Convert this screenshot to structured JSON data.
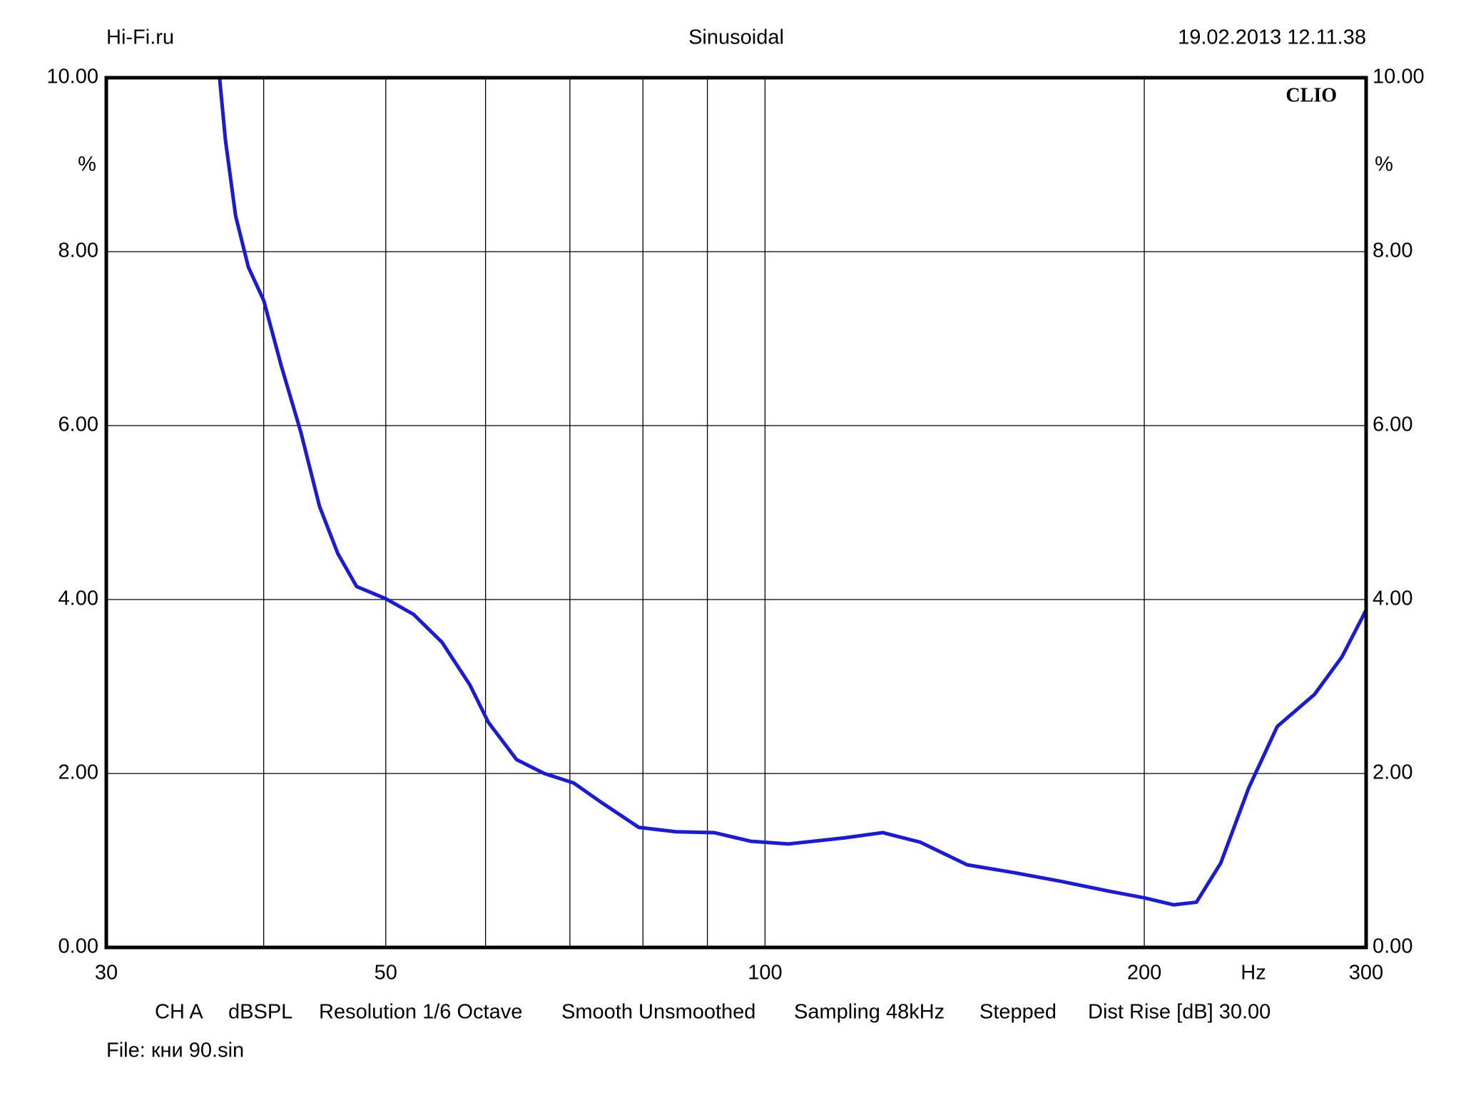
{
  "chart_data": {
    "type": "line",
    "header": {
      "left": "Hi-Fi.ru",
      "center": "Sinusoidal",
      "right": "19.02.2013 12.11.38"
    },
    "brand": "CLIO",
    "y_unit": "%",
    "x_unit": "Hz",
    "footer": [
      "CH A",
      "dBSPL",
      "Resolution 1/6 Octave",
      "Smooth Unsmoothed",
      "Sampling 48kHz",
      "Stepped",
      "Dist Rise [dB] 30.00"
    ],
    "file": "File: кни 90.sin",
    "x_log": true,
    "xlim": [
      30,
      300
    ],
    "xticks": [
      30,
      50,
      100,
      200,
      300
    ],
    "xgrid_minor": [
      40,
      60,
      70,
      80,
      90
    ],
    "ylim": [
      0,
      10
    ],
    "yticks": [
      {
        "value": 0,
        "label": "0.00"
      },
      {
        "value": 2,
        "label": "2.00"
      },
      {
        "value": 4,
        "label": "4.00"
      },
      {
        "value": 6,
        "label": "6.00"
      },
      {
        "value": 8,
        "label": "8.00"
      },
      {
        "value": 10,
        "label": "10.00"
      }
    ],
    "grid": true,
    "x": [
      36.9,
      37.3,
      38.0,
      38.9,
      40.0,
      41.3,
      42.8,
      44.3,
      45.8,
      47.4,
      50.0,
      52.6,
      55.4,
      58.3,
      60.3,
      63.5,
      66.8,
      70.5,
      74.1,
      79.4,
      85.0,
      91.1,
      97.5,
      104.4,
      115.7,
      124.0,
      132.8,
      144.7,
      157.6,
      171.8,
      187.0,
      200.0,
      211.0,
      220.0,
      230.0,
      242.0,
      255.0,
      273.0,
      287.0,
      300.0
    ],
    "series": [
      {
        "name": "CH A",
        "color": "#1a1adc",
        "values": [
          10.0,
          9.28,
          8.41,
          7.82,
          7.44,
          6.69,
          5.93,
          5.07,
          4.53,
          4.15,
          4.01,
          3.83,
          3.51,
          3.02,
          2.59,
          2.16,
          2.0,
          1.89,
          1.67,
          1.38,
          1.33,
          1.32,
          1.22,
          1.19,
          1.26,
          1.32,
          1.21,
          0.95,
          0.86,
          0.76,
          0.65,
          0.57,
          0.49,
          0.52,
          0.97,
          1.83,
          2.54,
          2.91,
          3.34,
          3.88
        ]
      }
    ]
  }
}
